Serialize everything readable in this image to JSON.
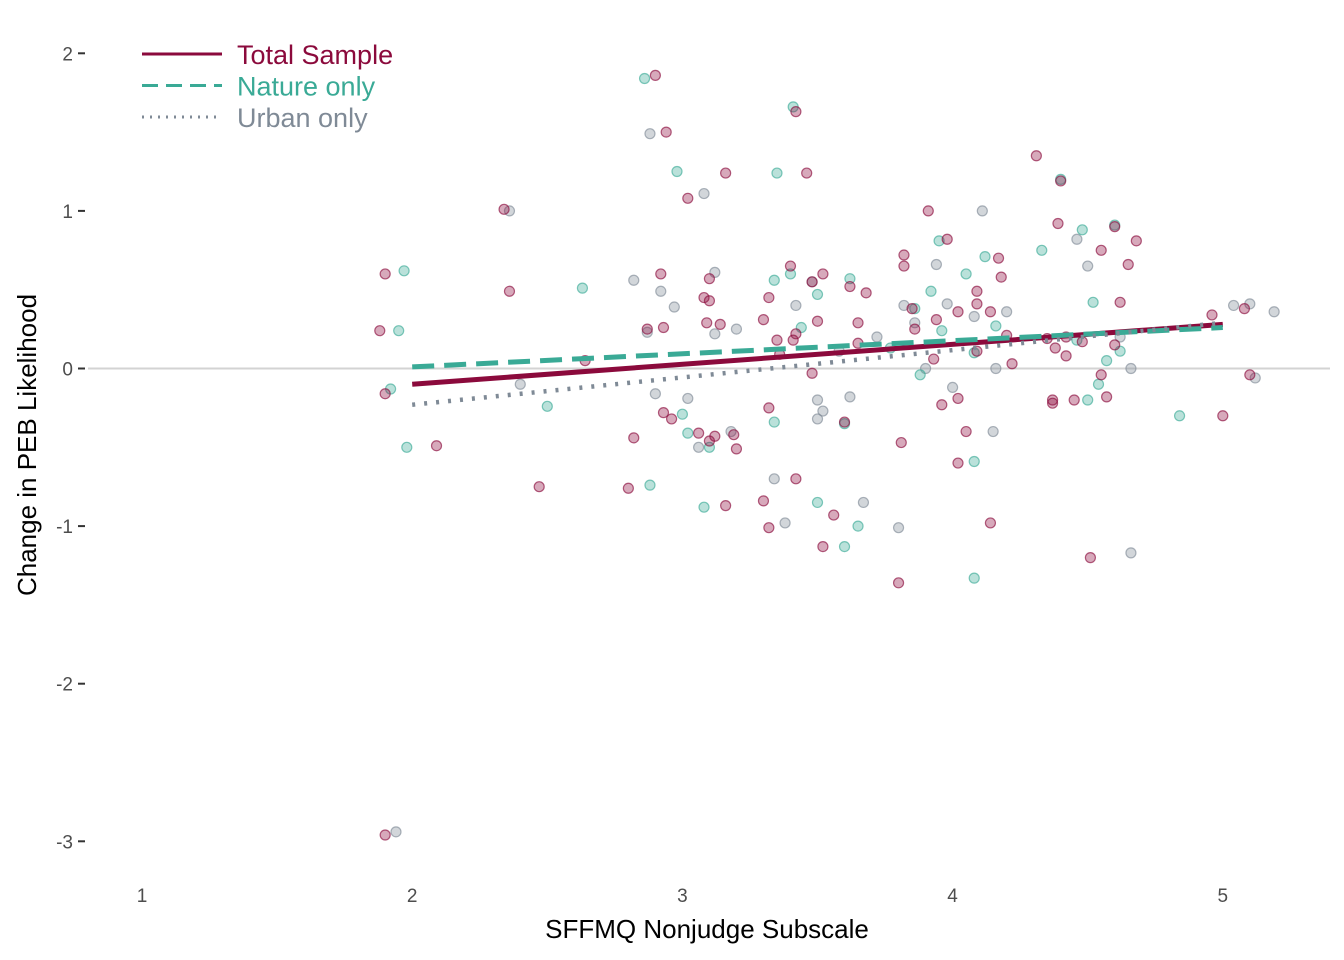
{
  "chart_data": {
    "type": "scatter",
    "xlabel": "SFFMQ Nonjudge Subscale",
    "ylabel": "Change in PEB Likelihood",
    "xlim": [
      0.65,
      5.4
    ],
    "ylim": [
      -3.2,
      2.2
    ],
    "x_ticks": [
      "1",
      "2",
      "3",
      "4",
      "5"
    ],
    "y_ticks": [
      "-3",
      "-2",
      "-1",
      "0",
      "1",
      "2"
    ],
    "grid": false,
    "reference_line_y": 0,
    "legend_position": "top-left",
    "colors": {
      "total": "#8b0a3c",
      "nature": "#3aaa96",
      "urban": "#7f8a96",
      "refline": "#d3d3d3",
      "axis_text": "#4d4d4d"
    },
    "series": [
      {
        "name": "Total Sample",
        "line_style": "solid",
        "color": "#8b0a3c",
        "fit_line": [
          [
            2.0,
            -0.1
          ],
          [
            5.0,
            0.28
          ]
        ],
        "points": [
          [
            1.9,
            0.6
          ],
          [
            1.88,
            0.24
          ],
          [
            1.9,
            -0.16
          ],
          [
            1.9,
            -2.96
          ],
          [
            2.09,
            -0.49
          ],
          [
            2.34,
            1.01
          ],
          [
            2.36,
            0.49
          ],
          [
            2.47,
            -0.75
          ],
          [
            2.64,
            0.05
          ],
          [
            2.8,
            -0.76
          ],
          [
            2.82,
            -0.44
          ],
          [
            2.87,
            0.25
          ],
          [
            2.9,
            1.86
          ],
          [
            2.92,
            0.6
          ],
          [
            2.93,
            0.26
          ],
          [
            2.94,
            1.5
          ],
          [
            2.93,
            -0.28
          ],
          [
            2.96,
            -0.32
          ],
          [
            3.02,
            1.08
          ],
          [
            3.06,
            -0.41
          ],
          [
            3.08,
            0.45
          ],
          [
            3.09,
            0.29
          ],
          [
            3.1,
            0.57
          ],
          [
            3.1,
            0.43
          ],
          [
            3.1,
            -0.46
          ],
          [
            3.12,
            -0.43
          ],
          [
            3.14,
            0.28
          ],
          [
            3.16,
            1.24
          ],
          [
            3.16,
            -0.87
          ],
          [
            3.19,
            -0.42
          ],
          [
            3.2,
            -0.51
          ],
          [
            3.3,
            -0.84
          ],
          [
            3.3,
            0.31
          ],
          [
            3.32,
            0.45
          ],
          [
            3.32,
            -0.25
          ],
          [
            3.32,
            -1.01
          ],
          [
            3.35,
            0.18
          ],
          [
            3.36,
            0.09
          ],
          [
            3.4,
            0.65
          ],
          [
            3.41,
            0.18
          ],
          [
            3.42,
            1.63
          ],
          [
            3.42,
            0.22
          ],
          [
            3.42,
            -0.7
          ],
          [
            3.46,
            1.24
          ],
          [
            3.48,
            0.55
          ],
          [
            3.48,
            -0.03
          ],
          [
            3.5,
            0.3
          ],
          [
            3.52,
            0.6
          ],
          [
            3.52,
            -1.13
          ],
          [
            3.56,
            -0.93
          ],
          [
            3.6,
            -0.34
          ],
          [
            3.62,
            0.52
          ],
          [
            3.65,
            0.29
          ],
          [
            3.65,
            0.16
          ],
          [
            3.68,
            0.48
          ],
          [
            3.8,
            -1.36
          ],
          [
            3.81,
            -0.47
          ],
          [
            3.82,
            0.72
          ],
          [
            3.82,
            0.65
          ],
          [
            3.85,
            0.38
          ],
          [
            3.86,
            0.25
          ],
          [
            3.91,
            1.0
          ],
          [
            3.93,
            0.06
          ],
          [
            3.96,
            -0.23
          ],
          [
            3.98,
            0.82
          ],
          [
            4.02,
            -0.6
          ],
          [
            4.02,
            0.36
          ],
          [
            4.02,
            -0.19
          ],
          [
            4.05,
            -0.4
          ],
          [
            4.09,
            0.41
          ],
          [
            4.09,
            0.49
          ],
          [
            4.09,
            0.11
          ],
          [
            4.14,
            0.36
          ],
          [
            4.14,
            -0.98
          ],
          [
            4.17,
            0.7
          ],
          [
            4.18,
            0.58
          ],
          [
            4.2,
            0.21
          ],
          [
            4.31,
            1.35
          ],
          [
            4.35,
            0.19
          ],
          [
            4.37,
            -0.2
          ],
          [
            4.37,
            -0.22
          ],
          [
            4.38,
            0.13
          ],
          [
            4.4,
            1.19
          ],
          [
            4.42,
            0.08
          ],
          [
            4.42,
            0.2
          ],
          [
            4.45,
            -0.2
          ],
          [
            4.48,
            0.17
          ],
          [
            4.51,
            -1.2
          ],
          [
            4.55,
            0.75
          ],
          [
            4.57,
            -0.18
          ],
          [
            4.6,
            0.15
          ],
          [
            4.6,
            0.9
          ],
          [
            4.62,
            0.42
          ],
          [
            4.65,
            0.66
          ],
          [
            4.68,
            0.81
          ],
          [
            4.96,
            0.34
          ],
          [
            5.0,
            -0.3
          ],
          [
            5.08,
            0.38
          ],
          [
            5.1,
            -0.04
          ],
          [
            4.39,
            0.92
          ],
          [
            3.94,
            0.31
          ],
          [
            4.22,
            0.03
          ],
          [
            4.55,
            -0.04
          ]
        ]
      },
      {
        "name": "Nature only",
        "line_style": "dashed",
        "color": "#3aaa96",
        "fit_line": [
          [
            2.0,
            0.01
          ],
          [
            5.0,
            0.26
          ]
        ],
        "points": [
          [
            1.92,
            -0.13
          ],
          [
            1.95,
            0.24
          ],
          [
            1.97,
            0.62
          ],
          [
            1.98,
            -0.5
          ],
          [
            2.5,
            -0.24
          ],
          [
            2.63,
            0.51
          ],
          [
            2.86,
            1.84
          ],
          [
            2.88,
            -0.74
          ],
          [
            2.98,
            1.25
          ],
          [
            3.0,
            -0.29
          ],
          [
            3.02,
            -0.41
          ],
          [
            3.08,
            -0.88
          ],
          [
            3.1,
            -0.5
          ],
          [
            3.34,
            0.56
          ],
          [
            3.35,
            1.24
          ],
          [
            3.34,
            -0.34
          ],
          [
            3.4,
            0.6
          ],
          [
            3.41,
            1.66
          ],
          [
            3.44,
            0.26
          ],
          [
            3.5,
            0.47
          ],
          [
            3.5,
            -0.85
          ],
          [
            3.6,
            -1.13
          ],
          [
            3.62,
            0.57
          ],
          [
            3.65,
            -1.0
          ],
          [
            3.77,
            0.13
          ],
          [
            3.86,
            0.38
          ],
          [
            3.92,
            0.49
          ],
          [
            3.95,
            0.81
          ],
          [
            3.96,
            0.24
          ],
          [
            4.05,
            0.6
          ],
          [
            4.08,
            0.1
          ],
          [
            4.08,
            -0.59
          ],
          [
            4.08,
            -1.33
          ],
          [
            4.12,
            0.71
          ],
          [
            4.16,
            0.27
          ],
          [
            4.33,
            0.75
          ],
          [
            4.4,
            1.2
          ],
          [
            4.46,
            0.18
          ],
          [
            4.48,
            0.88
          ],
          [
            4.5,
            -0.2
          ],
          [
            4.52,
            0.42
          ],
          [
            4.57,
            0.05
          ],
          [
            4.6,
            0.91
          ],
          [
            4.62,
            0.11
          ],
          [
            4.84,
            -0.3
          ],
          [
            4.54,
            -0.1
          ],
          [
            3.88,
            -0.04
          ],
          [
            3.6,
            -0.35
          ]
        ]
      },
      {
        "name": "Urban only",
        "line_style": "dotted",
        "color": "#7f8a96",
        "fit_line": [
          [
            2.0,
            -0.23
          ],
          [
            5.0,
            0.29
          ]
        ],
        "points": [
          [
            1.94,
            -2.94
          ],
          [
            2.36,
            1.0
          ],
          [
            2.4,
            -0.1
          ],
          [
            2.82,
            0.56
          ],
          [
            2.87,
            0.23
          ],
          [
            2.88,
            1.49
          ],
          [
            2.9,
            -0.16
          ],
          [
            2.92,
            0.49
          ],
          [
            2.97,
            0.39
          ],
          [
            3.02,
            -0.19
          ],
          [
            3.06,
            -0.5
          ],
          [
            3.08,
            1.11
          ],
          [
            3.12,
            0.61
          ],
          [
            3.12,
            0.22
          ],
          [
            3.2,
            0.25
          ],
          [
            3.34,
            -0.7
          ],
          [
            3.38,
            -0.98
          ],
          [
            3.42,
            0.4
          ],
          [
            3.48,
            0.55
          ],
          [
            3.5,
            -0.2
          ],
          [
            3.52,
            -0.27
          ],
          [
            3.58,
            0.11
          ],
          [
            3.62,
            -0.18
          ],
          [
            3.67,
            -0.85
          ],
          [
            3.8,
            -1.01
          ],
          [
            3.82,
            0.4
          ],
          [
            3.86,
            0.29
          ],
          [
            3.9,
            0.0
          ],
          [
            3.94,
            0.66
          ],
          [
            3.98,
            0.41
          ],
          [
            4.0,
            -0.12
          ],
          [
            4.08,
            0.33
          ],
          [
            4.11,
            1.0
          ],
          [
            4.16,
            0.0
          ],
          [
            4.2,
            0.36
          ],
          [
            4.46,
            0.82
          ],
          [
            4.5,
            0.65
          ],
          [
            4.62,
            0.2
          ],
          [
            4.66,
            0.0
          ],
          [
            4.66,
            -1.17
          ],
          [
            5.04,
            0.4
          ],
          [
            5.1,
            0.41
          ],
          [
            5.12,
            -0.06
          ],
          [
            5.19,
            0.36
          ],
          [
            4.15,
            -0.4
          ],
          [
            3.5,
            -0.32
          ],
          [
            3.18,
            -0.4
          ],
          [
            3.72,
            0.2
          ]
        ]
      }
    ]
  }
}
